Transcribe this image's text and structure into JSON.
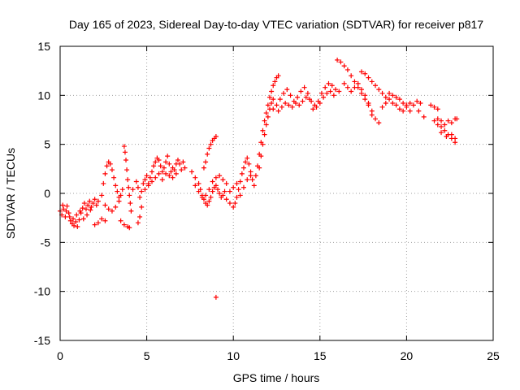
{
  "chart_data": {
    "type": "scatter",
    "title": "Day 165 of 2023, Sidereal Day-to-day VTEC variation (SDTVAR) for receiver p817",
    "xlabel": "GPS time / hours",
    "ylabel": "SDTVAR / TECUs",
    "xlim": [
      0,
      25
    ],
    "ylim": [
      -15,
      15
    ],
    "xticks": [
      "0",
      "5",
      "10",
      "15",
      "20",
      "25"
    ],
    "yticks": [
      "-15",
      "-10",
      "-5",
      "0",
      "5",
      "10",
      "15"
    ],
    "grid": true,
    "marker": "plus",
    "color": "#ff0000",
    "series": [
      {
        "name": "SDTVAR",
        "points": [
          [
            0.0,
            -1.8
          ],
          [
            0.1,
            -2.2
          ],
          [
            0.2,
            -1.6
          ],
          [
            0.3,
            -2.4
          ],
          [
            0.4,
            -1.3
          ],
          [
            0.5,
            -2.0
          ],
          [
            0.6,
            -2.8
          ],
          [
            0.7,
            -3.1
          ],
          [
            0.8,
            -3.3
          ],
          [
            0.9,
            -2.9
          ],
          [
            1.0,
            -3.4
          ],
          [
            1.1,
            -2.7
          ],
          [
            1.2,
            -2.0
          ],
          [
            1.3,
            -1.5
          ],
          [
            1.4,
            -1.0
          ],
          [
            1.5,
            -1.6
          ],
          [
            1.6,
            -1.2
          ],
          [
            1.7,
            -0.8
          ],
          [
            1.8,
            -1.4
          ],
          [
            1.9,
            -1.0
          ],
          [
            2.0,
            -0.6
          ],
          [
            2.1,
            -1.2
          ],
          [
            2.2,
            -0.8
          ],
          [
            0.15,
            -1.2
          ],
          [
            0.35,
            -1.8
          ],
          [
            0.55,
            -2.4
          ],
          [
            0.75,
            -2.6
          ],
          [
            0.95,
            -2.2
          ],
          [
            1.15,
            -1.8
          ],
          [
            1.35,
            -2.6
          ],
          [
            1.55,
            -2.2
          ],
          [
            1.75,
            -1.7
          ],
          [
            2.0,
            -3.2
          ],
          [
            2.2,
            -3.0
          ],
          [
            2.4,
            -2.6
          ],
          [
            2.6,
            -2.8
          ],
          [
            2.4,
            -0.2
          ],
          [
            2.5,
            1.0
          ],
          [
            2.6,
            2.0
          ],
          [
            2.7,
            2.8
          ],
          [
            2.8,
            3.2
          ],
          [
            2.9,
            3.0
          ],
          [
            3.0,
            2.4
          ],
          [
            3.1,
            1.6
          ],
          [
            3.2,
            0.8
          ],
          [
            3.3,
            0.2
          ],
          [
            3.4,
            -0.4
          ],
          [
            3.2,
            -1.4
          ],
          [
            3.0,
            -1.8
          ],
          [
            2.8,
            -1.6
          ],
          [
            2.6,
            -1.2
          ],
          [
            3.4,
            -0.8
          ],
          [
            3.5,
            -0.2
          ],
          [
            3.6,
            0.4
          ],
          [
            3.7,
            4.8
          ],
          [
            3.75,
            4.2
          ],
          [
            3.8,
            3.4
          ],
          [
            3.85,
            2.4
          ],
          [
            3.9,
            1.4
          ],
          [
            3.95,
            0.6
          ],
          [
            4.0,
            -0.2
          ],
          [
            4.05,
            -1.0
          ],
          [
            4.1,
            -1.8
          ],
          [
            3.5,
            -2.8
          ],
          [
            3.7,
            -3.2
          ],
          [
            3.9,
            -3.4
          ],
          [
            4.0,
            -3.5
          ],
          [
            4.2,
            0.4
          ],
          [
            4.4,
            1.2
          ],
          [
            4.5,
            0.6
          ],
          [
            4.6,
            -0.4
          ],
          [
            4.7,
            -1.4
          ],
          [
            4.6,
            -2.4
          ],
          [
            4.5,
            -3.0
          ],
          [
            4.7,
            0.2
          ],
          [
            4.8,
            1.0
          ],
          [
            4.9,
            1.4
          ],
          [
            5.0,
            1.8
          ],
          [
            5.1,
            1.0
          ],
          [
            5.2,
            1.6
          ],
          [
            5.3,
            2.2
          ],
          [
            5.4,
            2.8
          ],
          [
            5.5,
            3.2
          ],
          [
            5.6,
            3.6
          ],
          [
            5.7,
            3.4
          ],
          [
            5.8,
            2.8
          ],
          [
            5.9,
            2.2
          ],
          [
            6.0,
            2.6
          ],
          [
            6.1,
            3.2
          ],
          [
            6.2,
            3.8
          ],
          [
            6.3,
            3.0
          ],
          [
            6.4,
            2.2
          ],
          [
            6.5,
            1.6
          ],
          [
            6.6,
            2.4
          ],
          [
            6.7,
            3.0
          ],
          [
            6.8,
            3.4
          ],
          [
            6.9,
            3.0
          ],
          [
            7.0,
            2.4
          ],
          [
            7.1,
            3.2
          ],
          [
            7.2,
            2.6
          ],
          [
            4.9,
            0.4
          ],
          [
            5.1,
            0.8
          ],
          [
            5.3,
            1.2
          ],
          [
            5.5,
            1.6
          ],
          [
            5.7,
            2.0
          ],
          [
            5.9,
            1.4
          ],
          [
            6.1,
            2.0
          ],
          [
            6.3,
            1.8
          ],
          [
            6.5,
            2.6
          ],
          [
            6.7,
            2.0
          ],
          [
            7.6,
            2.2
          ],
          [
            7.8,
            1.6
          ],
          [
            8.0,
            1.0
          ],
          [
            8.1,
            0.4
          ],
          [
            8.2,
            -0.2
          ],
          [
            8.3,
            -0.6
          ],
          [
            8.4,
            -1.0
          ],
          [
            8.5,
            -1.2
          ],
          [
            8.6,
            -0.8
          ],
          [
            8.7,
            -0.4
          ],
          [
            8.8,
            0.2
          ],
          [
            8.9,
            0.6
          ],
          [
            9.0,
            0.8
          ],
          [
            9.1,
            0.4
          ],
          [
            9.2,
            0.0
          ],
          [
            9.3,
            -0.4
          ],
          [
            9.4,
            -0.2
          ],
          [
            9.5,
            0.2
          ],
          [
            7.8,
            0.8
          ],
          [
            8.0,
            0.2
          ],
          [
            8.2,
            -0.4
          ],
          [
            8.4,
            -0.2
          ],
          [
            8.6,
            0.4
          ],
          [
            8.8,
            1.2
          ],
          [
            9.0,
            1.6
          ],
          [
            9.2,
            1.8
          ],
          [
            9.4,
            1.4
          ],
          [
            9.6,
            1.0
          ],
          [
            8.3,
            2.6
          ],
          [
            8.4,
            3.2
          ],
          [
            8.5,
            4.0
          ],
          [
            8.6,
            4.6
          ],
          [
            8.7,
            5.0
          ],
          [
            8.8,
            5.4
          ],
          [
            8.9,
            5.6
          ],
          [
            9.0,
            5.8
          ],
          [
            9.0,
            -10.6
          ],
          [
            9.6,
            -0.6
          ],
          [
            9.8,
            -1.0
          ],
          [
            10.0,
            -1.4
          ],
          [
            10.1,
            -1.0
          ],
          [
            10.2,
            -0.4
          ],
          [
            10.3,
            0.4
          ],
          [
            10.4,
            1.2
          ],
          [
            10.5,
            2.0
          ],
          [
            10.6,
            2.6
          ],
          [
            10.7,
            3.2
          ],
          [
            10.8,
            3.6
          ],
          [
            10.9,
            3.0
          ],
          [
            11.0,
            2.2
          ],
          [
            11.1,
            1.4
          ],
          [
            11.2,
            0.8
          ],
          [
            9.8,
            0.2
          ],
          [
            10.0,
            0.6
          ],
          [
            10.2,
            1.0
          ],
          [
            10.4,
            -0.2
          ],
          [
            10.6,
            0.6
          ],
          [
            10.8,
            1.4
          ],
          [
            11.0,
            1.8
          ],
          [
            11.3,
            1.8
          ],
          [
            11.4,
            2.8
          ],
          [
            11.5,
            4.0
          ],
          [
            11.6,
            5.2
          ],
          [
            11.7,
            6.4
          ],
          [
            11.8,
            7.4
          ],
          [
            11.9,
            8.2
          ],
          [
            12.0,
            9.0
          ],
          [
            12.1,
            9.8
          ],
          [
            12.2,
            10.4
          ],
          [
            12.3,
            11.0
          ],
          [
            12.4,
            11.4
          ],
          [
            12.5,
            11.8
          ],
          [
            12.6,
            12.0
          ],
          [
            11.5,
            2.6
          ],
          [
            11.6,
            3.8
          ],
          [
            11.7,
            5.0
          ],
          [
            11.8,
            6.0
          ],
          [
            11.9,
            7.0
          ],
          [
            12.0,
            7.8
          ],
          [
            12.1,
            8.6
          ],
          [
            12.2,
            9.2
          ],
          [
            12.3,
            9.6
          ],
          [
            12.3,
            8.6
          ],
          [
            12.5,
            9.0
          ],
          [
            12.7,
            9.6
          ],
          [
            12.9,
            10.2
          ],
          [
            13.1,
            10.6
          ],
          [
            13.3,
            10.0
          ],
          [
            13.5,
            9.4
          ],
          [
            13.7,
            9.8
          ],
          [
            13.9,
            10.4
          ],
          [
            14.1,
            10.8
          ],
          [
            14.3,
            10.2
          ],
          [
            14.5,
            9.4
          ],
          [
            14.7,
            9.0
          ],
          [
            14.9,
            9.4
          ],
          [
            15.1,
            10.2
          ],
          [
            15.3,
            10.8
          ],
          [
            15.5,
            11.2
          ],
          [
            15.7,
            11.0
          ],
          [
            15.9,
            10.6
          ],
          [
            16.1,
            10.4
          ],
          [
            12.6,
            8.4
          ],
          [
            12.8,
            8.8
          ],
          [
            13.0,
            9.2
          ],
          [
            13.2,
            9.0
          ],
          [
            13.4,
            8.8
          ],
          [
            13.6,
            9.2
          ],
          [
            13.8,
            9.0
          ],
          [
            14.0,
            9.4
          ],
          [
            14.2,
            9.8
          ],
          [
            14.4,
            9.6
          ],
          [
            14.6,
            8.6
          ],
          [
            14.8,
            8.8
          ],
          [
            15.0,
            9.2
          ],
          [
            15.2,
            9.8
          ],
          [
            15.4,
            10.2
          ],
          [
            15.6,
            10.4
          ],
          [
            15.8,
            10.0
          ],
          [
            16.0,
            13.6
          ],
          [
            16.2,
            13.4
          ],
          [
            16.4,
            13.0
          ],
          [
            16.6,
            12.6
          ],
          [
            16.8,
            12.0
          ],
          [
            17.0,
            11.4
          ],
          [
            17.2,
            10.8
          ],
          [
            17.4,
            10.2
          ],
          [
            17.6,
            9.6
          ],
          [
            17.8,
            9.0
          ],
          [
            18.0,
            8.4
          ],
          [
            16.4,
            11.2
          ],
          [
            16.6,
            10.8
          ],
          [
            16.8,
            10.4
          ],
          [
            17.0,
            10.8
          ],
          [
            17.2,
            11.2
          ],
          [
            17.4,
            10.6
          ],
          [
            17.6,
            10.0
          ],
          [
            17.8,
            9.2
          ],
          [
            18.0,
            8.0
          ],
          [
            18.2,
            7.6
          ],
          [
            18.4,
            7.2
          ],
          [
            17.4,
            12.4
          ],
          [
            17.6,
            12.2
          ],
          [
            17.8,
            11.8
          ],
          [
            18.0,
            11.4
          ],
          [
            18.2,
            11.0
          ],
          [
            18.4,
            10.6
          ],
          [
            18.6,
            10.2
          ],
          [
            18.8,
            9.8
          ],
          [
            18.6,
            8.8
          ],
          [
            18.8,
            9.2
          ],
          [
            19.0,
            9.6
          ],
          [
            19.2,
            9.2
          ],
          [
            19.4,
            9.0
          ],
          [
            19.6,
            8.6
          ],
          [
            19.8,
            8.4
          ],
          [
            20.0,
            8.8
          ],
          [
            20.2,
            9.2
          ],
          [
            19.0,
            10.2
          ],
          [
            19.2,
            10.0
          ],
          [
            19.4,
            9.8
          ],
          [
            19.6,
            9.6
          ],
          [
            19.8,
            9.2
          ],
          [
            20.0,
            9.0
          ],
          [
            20.2,
            8.4
          ],
          [
            20.4,
            9.0
          ],
          [
            20.6,
            9.4
          ],
          [
            20.8,
            9.2
          ],
          [
            20.7,
            8.4
          ],
          [
            21.0,
            7.8
          ],
          [
            21.4,
            9.0
          ],
          [
            21.6,
            8.8
          ],
          [
            21.8,
            8.6
          ],
          [
            21.6,
            7.4
          ],
          [
            21.8,
            7.0
          ],
          [
            22.0,
            6.8
          ],
          [
            22.2,
            6.4
          ],
          [
            22.4,
            6.0
          ],
          [
            22.6,
            5.6
          ],
          [
            22.8,
            5.2
          ],
          [
            21.8,
            7.6
          ],
          [
            22.0,
            7.4
          ],
          [
            22.2,
            7.0
          ],
          [
            22.4,
            7.4
          ],
          [
            22.6,
            7.2
          ],
          [
            22.8,
            7.6
          ],
          [
            22.9,
            7.6
          ],
          [
            22.0,
            6.2
          ],
          [
            22.3,
            5.8
          ],
          [
            22.6,
            6.0
          ],
          [
            22.8,
            5.6
          ]
        ]
      }
    ]
  }
}
